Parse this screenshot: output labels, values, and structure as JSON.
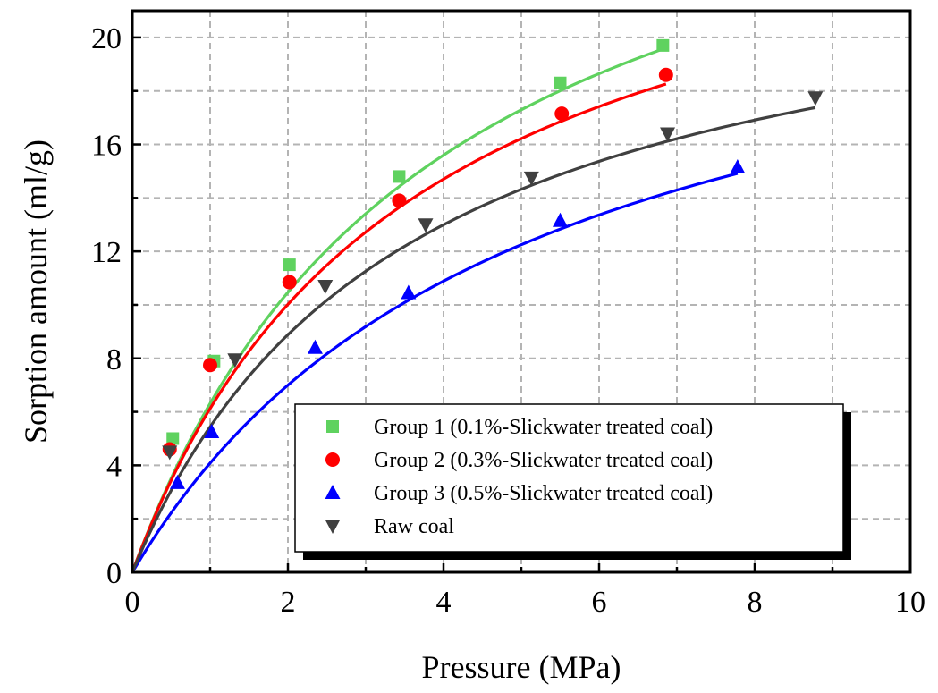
{
  "chart_data": {
    "type": "scatter",
    "xlabel": "Pressure (MPa)",
    "ylabel": "Sorption amount (ml/g)",
    "xlim": [
      0,
      10
    ],
    "ylim": [
      0,
      21
    ],
    "xticks": [
      0,
      2,
      4,
      6,
      8,
      10
    ],
    "yticks": [
      0,
      4,
      8,
      12,
      16,
      20
    ],
    "grid": true,
    "legend_position": "bottom-right",
    "series": [
      {
        "name": "Group 1 (0.1%-Slickwater treated coal)",
        "marker": "square",
        "color": "#5fd25f",
        "points": [
          [
            0.52,
            5.0
          ],
          [
            1.05,
            7.9
          ],
          [
            2.02,
            11.5
          ],
          [
            3.43,
            14.8
          ],
          [
            5.5,
            18.3
          ],
          [
            6.82,
            19.7
          ]
        ],
        "fit": {
          "a": 30.6,
          "b": 0.26,
          "x_max": 6.82
        }
      },
      {
        "name": "Group 2 (0.3%-Slickwater treated coal)",
        "marker": "circle",
        "color": "#ff0000",
        "points": [
          [
            0.48,
            4.6
          ],
          [
            1.0,
            7.75
          ],
          [
            2.02,
            10.85
          ],
          [
            3.43,
            13.9
          ],
          [
            5.52,
            17.15
          ],
          [
            6.86,
            18.6
          ]
        ],
        "fit": {
          "a": 27.6,
          "b": 0.285,
          "x_max": 6.86
        }
      },
      {
        "name": "Group 3 (0.5%-Slickwater treated coal)",
        "marker": "triangle-up",
        "color": "#0000ff",
        "points": [
          [
            0.58,
            3.35
          ],
          [
            1.02,
            5.25
          ],
          [
            2.35,
            8.4
          ],
          [
            3.55,
            10.45
          ],
          [
            5.5,
            13.15
          ],
          [
            7.78,
            15.15
          ]
        ],
        "fit": {
          "a": 24.5,
          "b": 0.2,
          "x_max": 7.78
        }
      },
      {
        "name": "Raw coal",
        "marker": "triangle-down",
        "color": "#404040",
        "points": [
          [
            0.48,
            4.5
          ],
          [
            1.32,
            7.95
          ],
          [
            2.48,
            10.7
          ],
          [
            3.77,
            13.0
          ],
          [
            5.13,
            14.75
          ],
          [
            6.88,
            16.4
          ],
          [
            8.78,
            17.75
          ]
        ],
        "fit": {
          "a": 24.2,
          "b": 0.29,
          "x_max": 8.78
        }
      }
    ]
  }
}
